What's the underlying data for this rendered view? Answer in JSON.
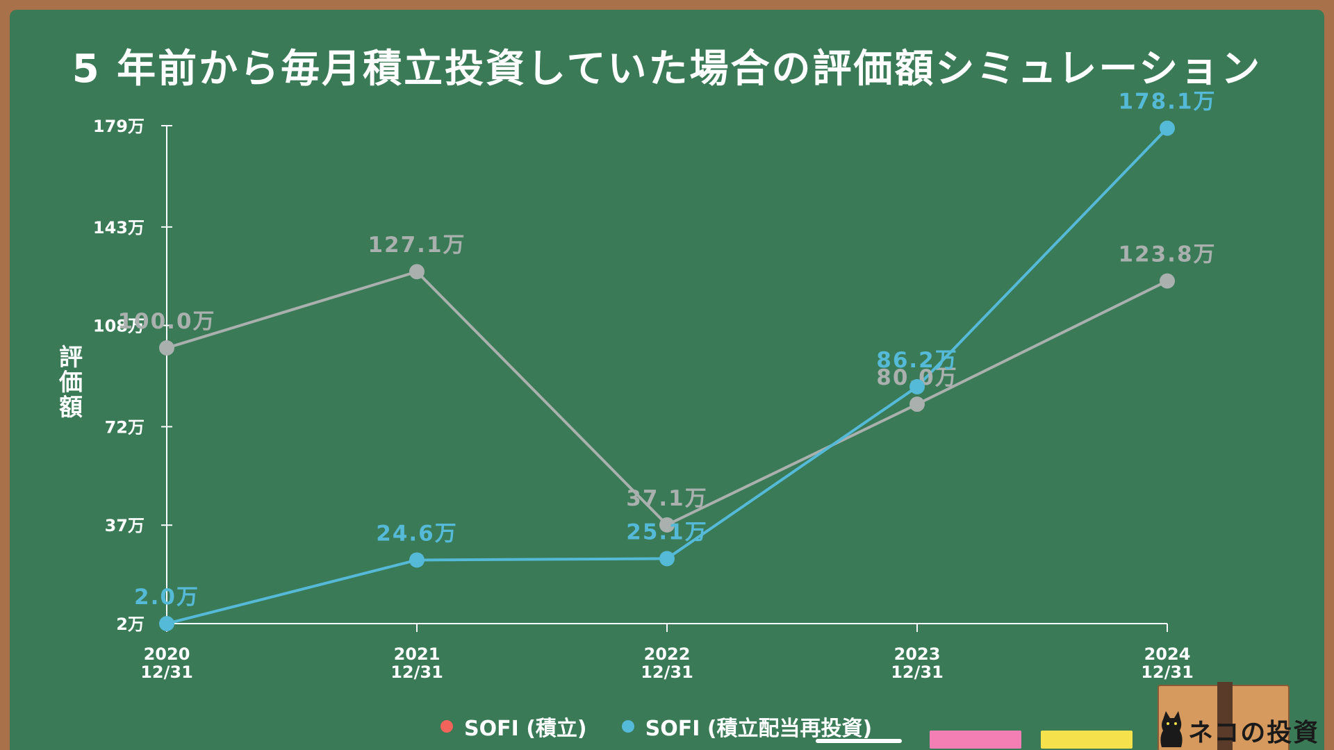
{
  "title": "5 年前から毎月積立投資していた場合の評価額シミュレーション",
  "chart_data": {
    "type": "line",
    "ylabel": "評価額",
    "yticks": [
      2,
      37,
      72,
      108,
      143,
      179
    ],
    "ytick_labels": [
      "2万",
      "37万",
      "72万",
      "108万",
      "143万",
      "179万"
    ],
    "ylim": [
      2,
      179
    ],
    "x": [
      {
        "year": "2020",
        "date": "12/31"
      },
      {
        "year": "2021",
        "date": "12/31"
      },
      {
        "year": "2022",
        "date": "12/31"
      },
      {
        "year": "2023",
        "date": "12/31"
      },
      {
        "year": "2024",
        "date": "12/31"
      }
    ],
    "series": [
      {
        "name": "SOFI (積立)",
        "color": "#a9b0ae",
        "values": [
          100.0,
          127.1,
          37.1,
          80.0,
          123.8
        ],
        "labels": [
          "100.0万",
          "127.1万",
          "37.1万",
          "80.0万",
          "123.8万"
        ]
      },
      {
        "name": "SOFI (積立配当再投資)",
        "color": "#55b9d8",
        "values": [
          2.0,
          24.6,
          25.1,
          86.2,
          178.1
        ],
        "labels": [
          "2.0万",
          "24.6万",
          "25.1万",
          "86.2万",
          "178.1万"
        ]
      }
    ],
    "grid": false
  },
  "legend": [
    {
      "label": "SOFI (積立)",
      "color": "#f2635b"
    },
    {
      "label": "SOFI (積立配当再投資)",
      "color": "#55b9d8"
    }
  ],
  "logo": {
    "text": "ネコの投資"
  }
}
